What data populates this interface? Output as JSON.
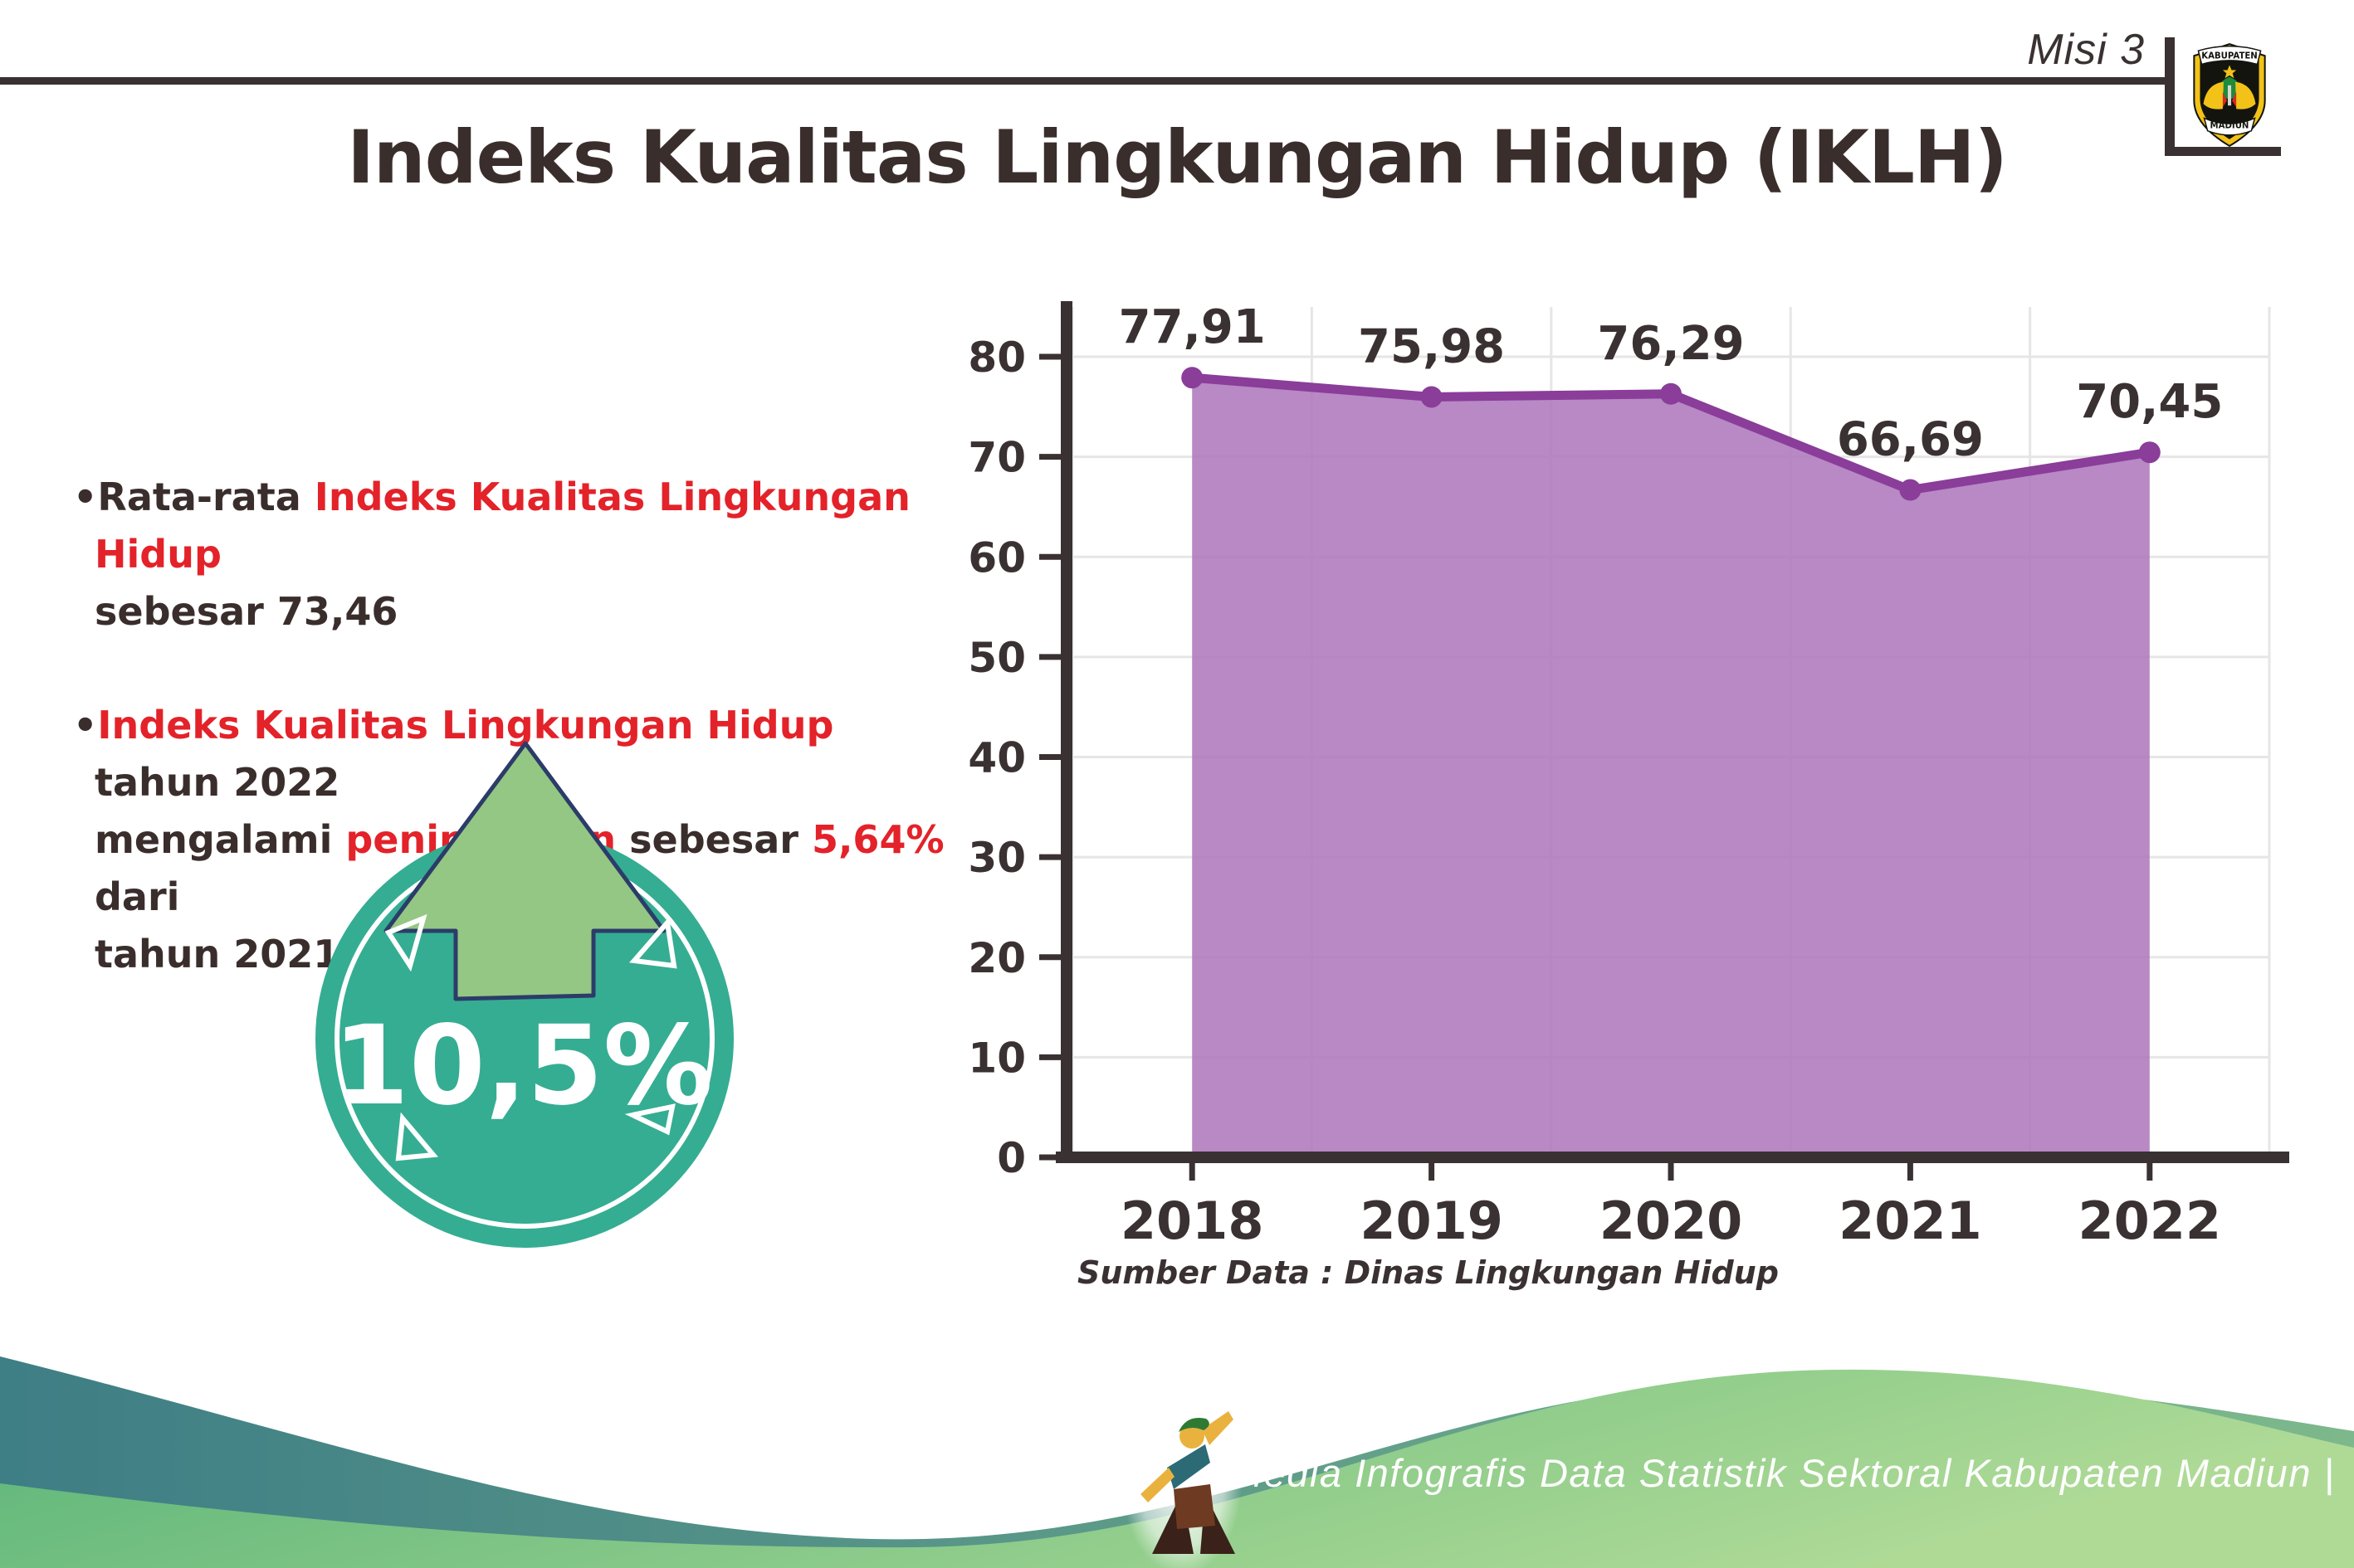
{
  "header": {
    "misi_label": "Misi 3",
    "logo": {
      "top_text": "KABUPATEN",
      "bottom_text": "MADIUN"
    }
  },
  "title": "Indeks Kualitas Lingkungan Hidup (IKLH)",
  "bullets": [
    {
      "glyph": "•",
      "segments": [
        {
          "text": "Rata-rata ",
          "color": "dark"
        },
        {
          "text": "Indeks Kualitas Lingkungan Hidup",
          "color": "red",
          "break_after": true
        },
        {
          "text": "sebesar 73,46",
          "color": "dark"
        }
      ]
    },
    {
      "glyph": "•",
      "segments": [
        {
          "text": "Indeks Kualitas Lingkungan Hidup",
          "color": "red"
        },
        {
          "text": " tahun 2022",
          "color": "dark",
          "break_after": true
        },
        {
          "text": "mengalami ",
          "color": "dark"
        },
        {
          "text": "peningkatan",
          "color": "red"
        },
        {
          "text": " sebesar ",
          "color": "dark"
        },
        {
          "text": "5,64%",
          "color": "red"
        },
        {
          "text": " dari",
          "color": "dark",
          "break_after": true
        },
        {
          "text": "tahun 2021",
          "color": "dark"
        }
      ]
    }
  ],
  "badge": {
    "value": "10,5%",
    "direction": "up"
  },
  "chart_data": {
    "type": "area",
    "categories": [
      "2018",
      "2019",
      "2020",
      "2021",
      "2022"
    ],
    "values": [
      77.91,
      75.98,
      76.29,
      66.69,
      70.45
    ],
    "value_labels": [
      "77,91",
      "75,98",
      "76,29",
      "66,69",
      "70,45"
    ],
    "title": "",
    "xlabel": "",
    "ylabel": "",
    "ylim": [
      0,
      80
    ],
    "ytick_step": 10,
    "grid": true,
    "legend": "none",
    "area_fill": "#ae79bd",
    "line_color": "#8a3d99",
    "axis_color": "#3a3132",
    "grid_color": "#e7e5e5",
    "label_color": "#3a3132"
  },
  "source_note": "Sumber Data : Dinas Lingkungan Hidup",
  "footer": {
    "text": "Media Infografis Data Statistik Sektoral Kabupaten Madiun |"
  },
  "colors": {
    "accent_red": "#e32229",
    "badge_teal": "#35ad92",
    "arrow_green": "#94c783",
    "arrow_outline_navy": "#2c3c69",
    "wave_teal": "#3e7e85",
    "wave_green": "#58b378"
  }
}
